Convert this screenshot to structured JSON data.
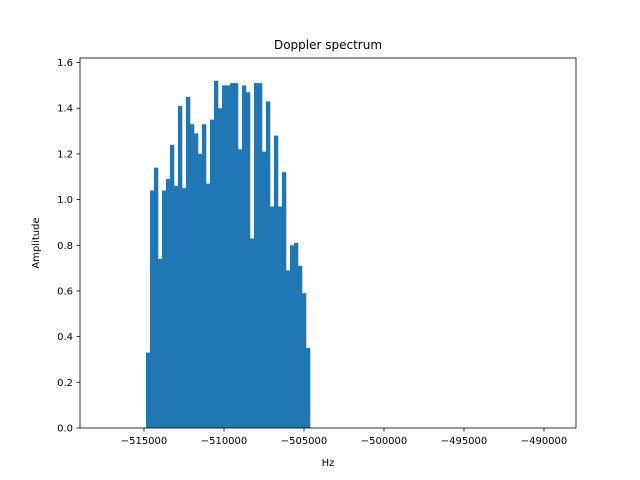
{
  "chart_data": {
    "type": "bar",
    "title": "Doppler spectrum",
    "xlabel": "Hz",
    "ylabel": "Amplitude",
    "xlim": [
      -519000,
      -488000
    ],
    "ylim": [
      0,
      1.62
    ],
    "bar_width": 250,
    "color": "#1f77b4",
    "grid": false,
    "legend": "none",
    "x_ticks": [
      -515000,
      -510000,
      -505000,
      -500000,
      -495000,
      -490000
    ],
    "x_tick_labels": [
      "−515000",
      "−510000",
      "−505000",
      "−500000",
      "−495000",
      "−490000"
    ],
    "y_ticks": [
      0.0,
      0.2,
      0.4,
      0.6,
      0.8,
      1.0,
      1.2,
      1.4,
      1.6
    ],
    "y_tick_labels": [
      "0.0",
      "0.2",
      "0.4",
      "0.6",
      "0.8",
      "1.0",
      "1.2",
      "1.4",
      "1.6"
    ],
    "x": [
      -514750,
      -514500,
      -514250,
      -514000,
      -513750,
      -513500,
      -513250,
      -513000,
      -512750,
      -512500,
      -512250,
      -512000,
      -511750,
      -511500,
      -511250,
      -511000,
      -510750,
      -510500,
      -510250,
      -510000,
      -509750,
      -509500,
      -509250,
      -509000,
      -508750,
      -508500,
      -508250,
      -508000,
      -507750,
      -507500,
      -507250,
      -507000,
      -506750,
      -506500,
      -506250,
      -506000,
      -505750,
      -505500,
      -505250,
      -505000,
      -504750,
      -504500,
      -504250
    ],
    "values": [
      0.33,
      1.04,
      1.14,
      0.74,
      1.04,
      1.09,
      1.24,
      1.06,
      1.41,
      1.05,
      1.45,
      1.33,
      1.29,
      1.2,
      1.33,
      1.07,
      1.35,
      1.52,
      1.4,
      1.5,
      1.5,
      1.51,
      1.51,
      1.22,
      1.5,
      1.47,
      0.83,
      1.51,
      1.51,
      1.21,
      1.43,
      0.97,
      1.28,
      0.97,
      1.12,
      0.69,
      0.8,
      0.81,
      0.71,
      0.59,
      0.35,
      0,
      0
    ]
  }
}
